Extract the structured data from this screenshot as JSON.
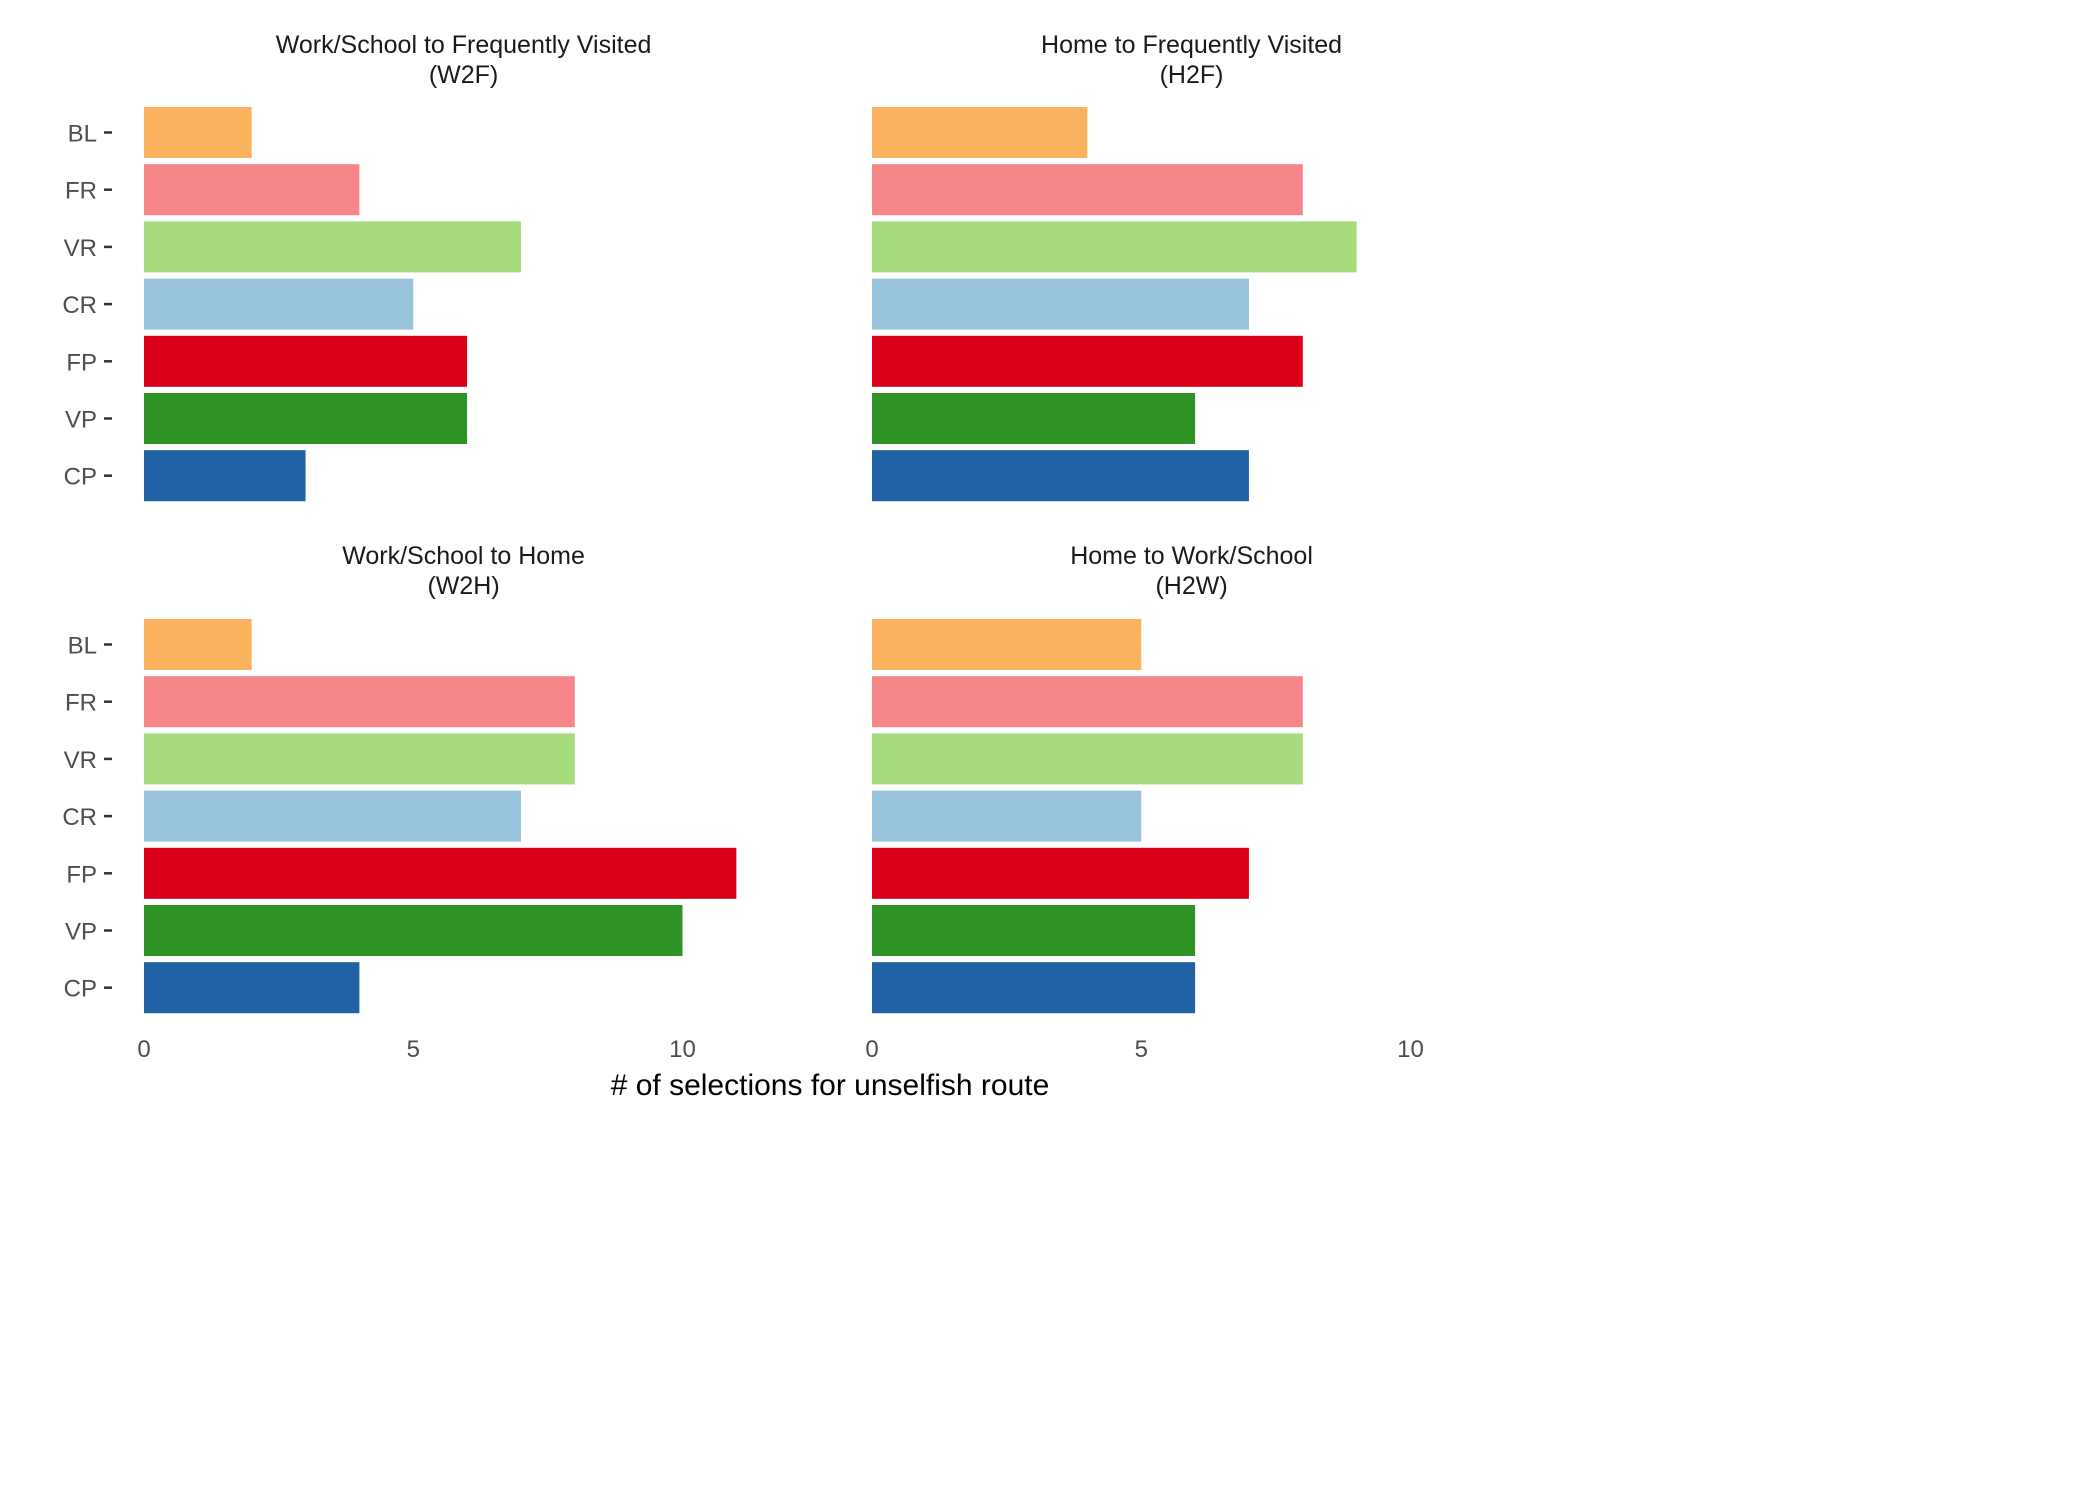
{
  "chart_data": {
    "type": "bar",
    "orientation": "horizontal",
    "facets": 4,
    "layout": "2x2",
    "categories": [
      "BL",
      "FR",
      "VR",
      "CR",
      "FP",
      "VP",
      "CP"
    ],
    "category_colors": {
      "BL": "#FBB25E",
      "FR": "#F78689",
      "VR": "#A5DB7A",
      "CR": "#97C3DC",
      "FP": "#DA0019",
      "VP": "#2F9425",
      "CP": "#1F63A4"
    },
    "xlabel": "# of selections for unselfish route",
    "ylabel": "",
    "xlim": [
      0,
      12.5
    ],
    "xticks": [
      0,
      5,
      10
    ],
    "grid": false,
    "legend": "none",
    "panels": [
      {
        "title_line1": "Work/School to Frequently Visited",
        "title_line2": "(W2F)",
        "values": [
          2,
          4,
          7,
          5,
          6,
          6,
          3
        ]
      },
      {
        "title_line1": "Home to Frequently Visited",
        "title_line2": "(H2F)",
        "values": [
          4,
          8,
          9,
          7,
          8,
          6,
          7
        ]
      },
      {
        "title_line1": "Work/School to Home",
        "title_line2": "(W2H)",
        "values": [
          2,
          8,
          8,
          7,
          11,
          10,
          4
        ]
      },
      {
        "title_line1": "Home to Work/School",
        "title_line2": "(H2W)",
        "values": [
          5,
          8,
          8,
          5,
          7,
          6,
          6
        ]
      }
    ]
  }
}
